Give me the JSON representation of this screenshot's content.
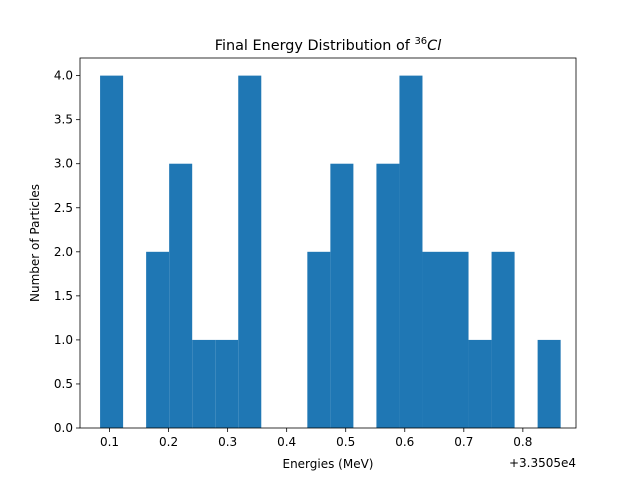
{
  "chart_data": {
    "type": "bar",
    "title_prefix": "Final Energy Distribution of ",
    "title_isotope_mass": "36",
    "title_element": "Cl",
    "xlabel": "Energies (MeV)",
    "ylabel": "Number of Particles",
    "offset_label": "+3.3505e4",
    "x_ticks": [
      "0.1",
      "0.2",
      "0.3",
      "0.4",
      "0.5",
      "0.6",
      "0.7",
      "0.8"
    ],
    "y_ticks": [
      "0.0",
      "0.5",
      "1.0",
      "1.5",
      "2.0",
      "2.5",
      "3.0",
      "3.5",
      "4.0"
    ],
    "xlim": [
      0.05,
      0.89
    ],
    "ylim": [
      0,
      4.2
    ],
    "bin_edges": [
      0.084,
      0.123,
      0.162,
      0.201,
      0.24,
      0.279,
      0.318,
      0.357,
      0.396,
      0.435,
      0.474,
      0.513,
      0.552,
      0.591,
      0.63,
      0.669,
      0.708,
      0.747,
      0.786,
      0.825,
      0.864
    ],
    "counts": [
      4,
      0,
      2,
      3,
      1,
      1,
      4,
      0,
      0,
      2,
      3,
      0,
      3,
      4,
      2,
      2,
      1,
      2,
      0,
      1
    ],
    "bar_color": "#1f77b4",
    "grid": false,
    "legend": "none"
  }
}
